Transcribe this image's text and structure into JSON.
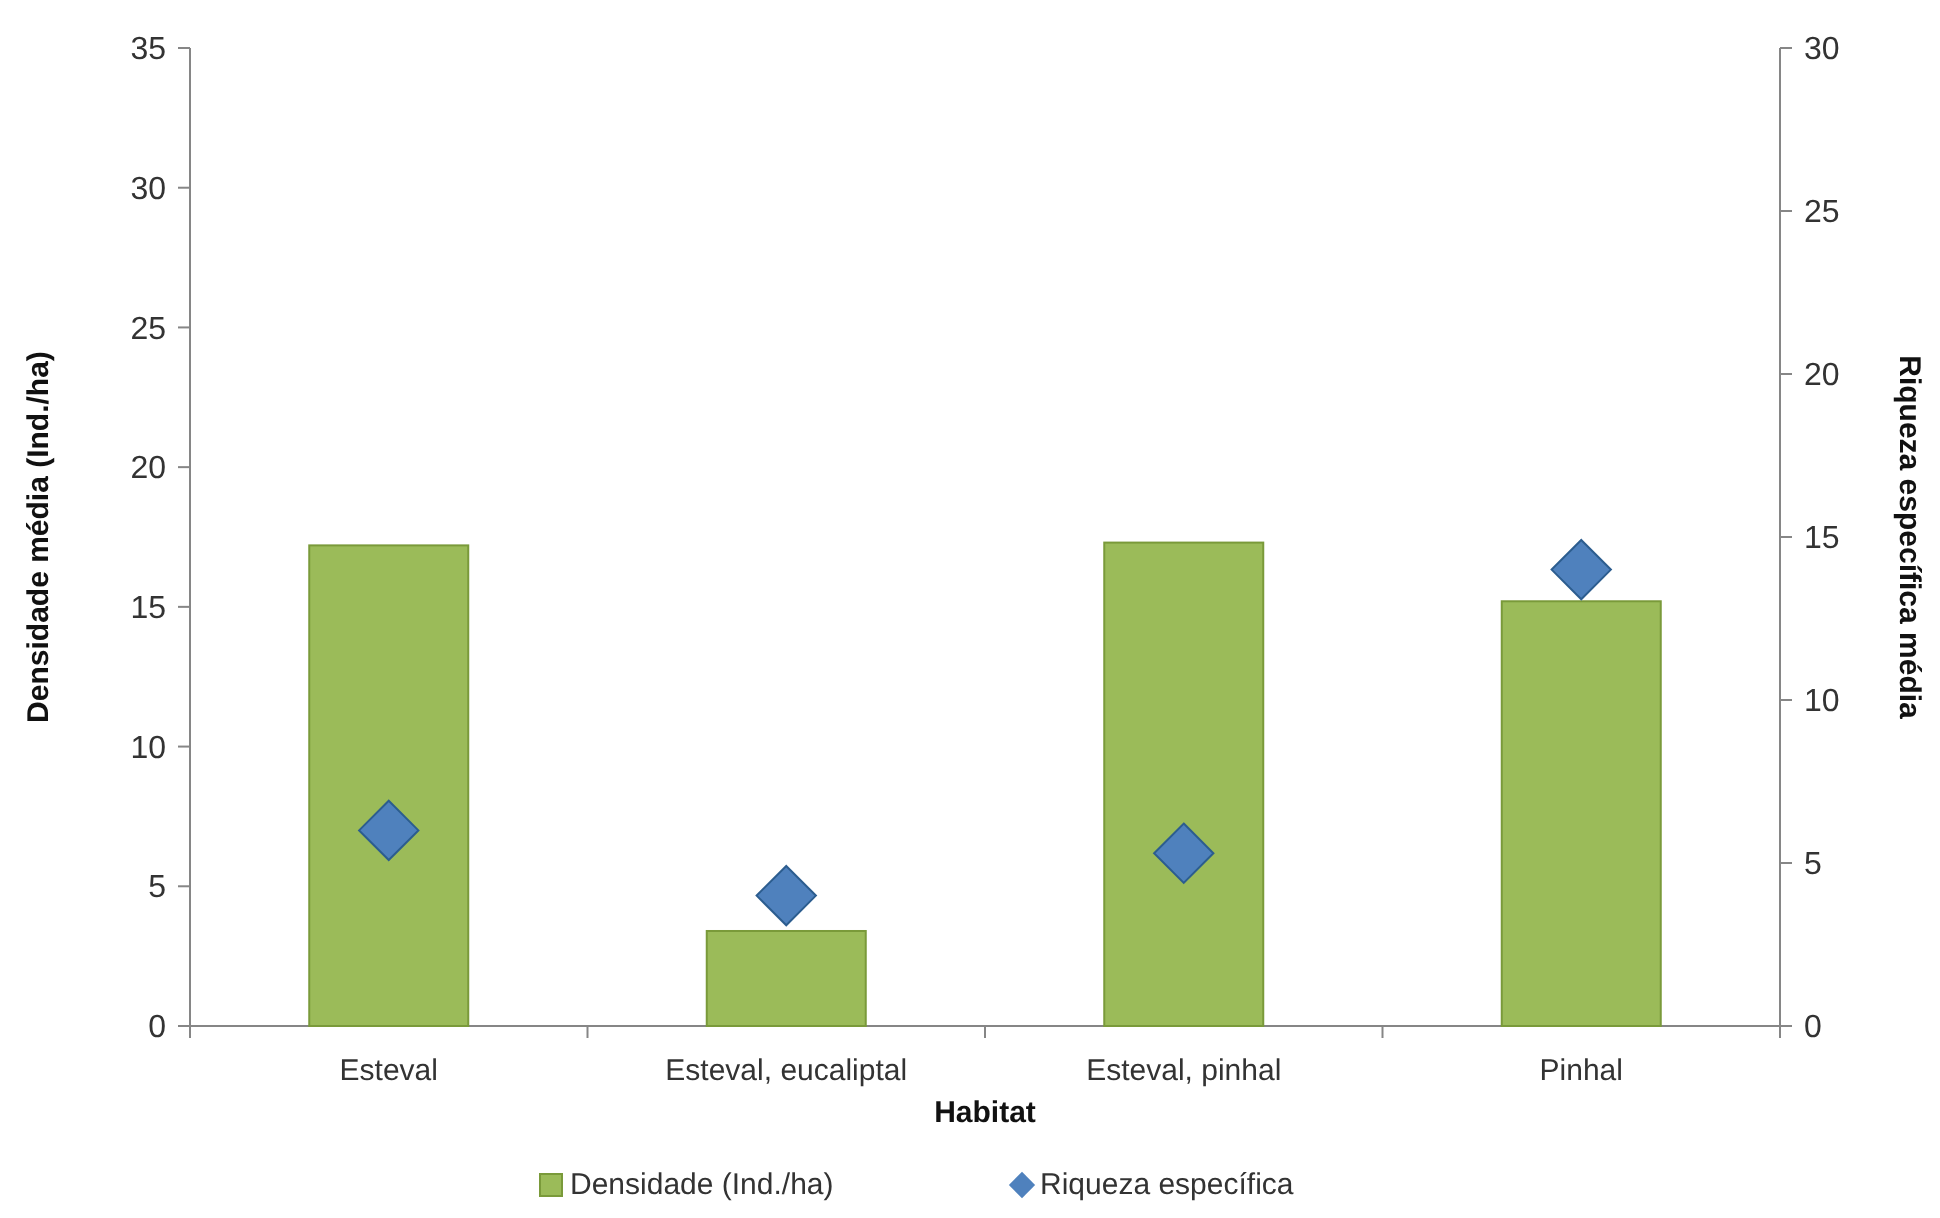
{
  "chart_data": {
    "type": "bar",
    "xlabel": "Habitat",
    "ylabel": "Densidade média (Ind./ha)",
    "y2label": "Riqueza específica média",
    "categories": [
      "Esteval",
      "Esteval, eucaliptal",
      "Esteval, pinhal",
      "Pinhal"
    ],
    "series": [
      {
        "name": "Densidade (Ind./ha)",
        "color": "#9bbb59",
        "values": [
          17.2,
          3.4,
          17.3,
          15.2
        ]
      },
      {
        "name": "Riqueza específica",
        "type": "scatter",
        "axis": "y2",
        "marker": "diamond",
        "color": "#4f81bd",
        "values": [
          6.0,
          4.0,
          5.3,
          14.0
        ]
      }
    ],
    "ylim": [
      0,
      35
    ],
    "yticks": [
      0,
      5,
      10,
      15,
      20,
      25,
      30,
      35
    ],
    "y2lim": [
      0,
      30
    ],
    "y2ticks": [
      0,
      5,
      10,
      15,
      20,
      25,
      30
    ],
    "grid": false,
    "legend": "bottom"
  }
}
